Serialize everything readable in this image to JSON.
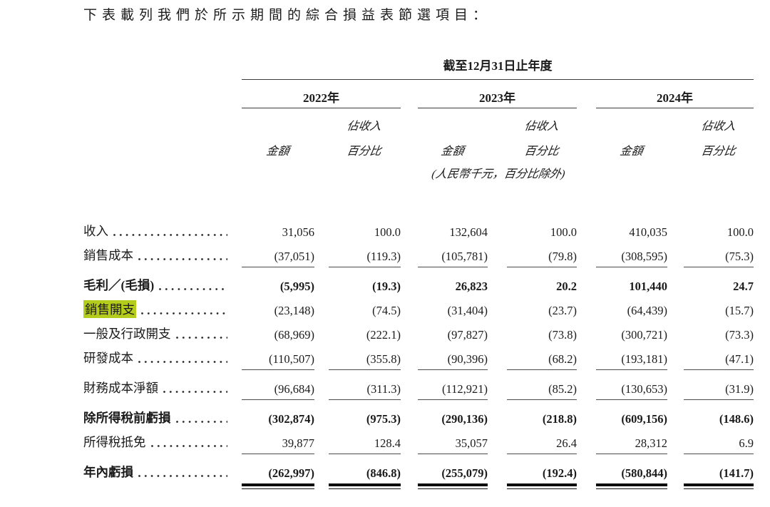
{
  "intro": {
    "text": "下表載列我們於所示期間的綜合損益表節選項目："
  },
  "table": {
    "period_header": "截至12月31日止年度",
    "unit_note": "(人民幣千元，百分比除外)",
    "year_groups": [
      {
        "label": "2022年"
      },
      {
        "label": "2023年"
      },
      {
        "label": "2024年"
      }
    ],
    "subheaders": {
      "amount": "金額",
      "pct_line1": "佔收入",
      "pct_line2": "百分比"
    },
    "highlight_color": "#b4cc1c",
    "text_color": "#1b1b1b",
    "rows": [
      {
        "label": "收入",
        "bold": false,
        "highlight": false,
        "rule_below": false,
        "double_rule_below": false,
        "values": [
          "31,056",
          "100.0",
          "132,604",
          "100.0",
          "410,035",
          "100.0"
        ]
      },
      {
        "label": "銷售成本",
        "bold": false,
        "highlight": false,
        "rule_below": true,
        "double_rule_below": false,
        "values": [
          "(37,051)",
          "(119.3)",
          "(105,781)",
          "(79.8)",
          "(308,595)",
          "(75.3)"
        ]
      },
      {
        "label": "毛利／(毛損)",
        "bold": true,
        "highlight": false,
        "rule_below": false,
        "double_rule_below": false,
        "values": [
          "(5,995)",
          "(19.3)",
          "26,823",
          "20.2",
          "101,440",
          "24.7"
        ]
      },
      {
        "label": "銷售開支",
        "bold": false,
        "highlight": true,
        "rule_below": false,
        "double_rule_below": false,
        "values": [
          "(23,148)",
          "(74.5)",
          "(31,404)",
          "(23.7)",
          "(64,439)",
          "(15.7)"
        ]
      },
      {
        "label": "一般及行政開支",
        "bold": false,
        "highlight": false,
        "rule_below": false,
        "double_rule_below": false,
        "values": [
          "(68,969)",
          "(222.1)",
          "(97,827)",
          "(73.8)",
          "(300,721)",
          "(73.3)"
        ]
      },
      {
        "label": "研發成本",
        "bold": false,
        "highlight": false,
        "rule_below": true,
        "double_rule_below": false,
        "values": [
          "(110,507)",
          "(355.8)",
          "(90,396)",
          "(68.2)",
          "(193,181)",
          "(47.1)"
        ]
      },
      {
        "label": "財務成本淨額",
        "bold": false,
        "highlight": false,
        "rule_below": true,
        "double_rule_below": false,
        "values": [
          "(96,684)",
          "(311.3)",
          "(112,921)",
          "(85.2)",
          "(130,653)",
          "(31.9)"
        ]
      },
      {
        "label": "除所得稅前虧損",
        "bold": true,
        "highlight": false,
        "rule_below": false,
        "double_rule_below": false,
        "values": [
          "(302,874)",
          "(975.3)",
          "(290,136)",
          "(218.8)",
          "(609,156)",
          "(148.6)"
        ]
      },
      {
        "label": "所得稅抵免",
        "bold": false,
        "highlight": false,
        "rule_below": true,
        "double_rule_below": false,
        "values": [
          "39,877",
          "128.4",
          "35,057",
          "26.4",
          "28,312",
          "6.9"
        ]
      },
      {
        "label": "年內虧損",
        "bold": true,
        "highlight": false,
        "rule_below": false,
        "double_rule_below": true,
        "values": [
          "(262,997)",
          "(846.8)",
          "(255,079)",
          "(192.4)",
          "(580,844)",
          "(141.7)"
        ]
      }
    ]
  }
}
